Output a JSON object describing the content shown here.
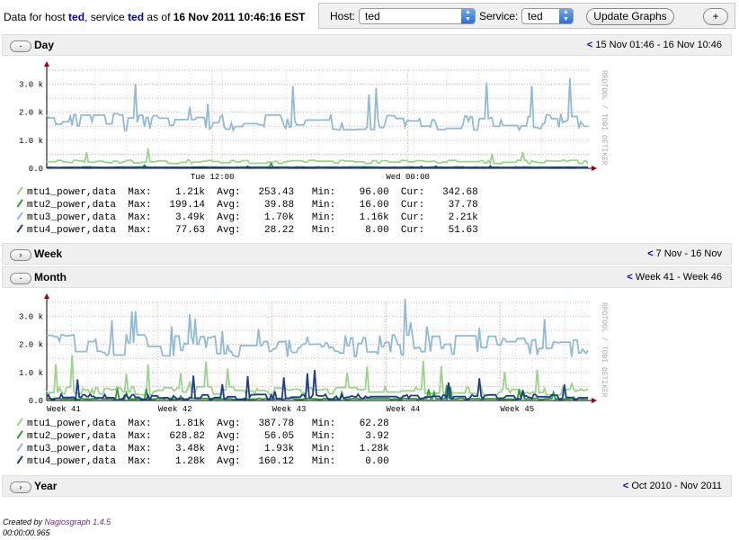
{
  "header": {
    "prefix": "Data for host ",
    "host": "ted",
    "mid1": ", service ",
    "service": "ted",
    "mid2": " as of ",
    "timestamp": "16 Nov 2011 10:46:16 EST"
  },
  "controls": {
    "host_label": "Host:",
    "host_value": "ted",
    "service_label": "Service:",
    "service_value": "ted",
    "update_button": "Update Graphs",
    "plus_button": "+"
  },
  "sections": {
    "day": {
      "toggle": "-",
      "title": "Day",
      "range": "15 Nov 01:46 - 16 Nov 10:46"
    },
    "week": {
      "toggle": "›",
      "title": "Week",
      "range": "7 Nov - 16 Nov"
    },
    "month": {
      "toggle": "-",
      "title": "Month",
      "range": "Week 41 - Week 46"
    },
    "year": {
      "toggle": "›",
      "title": "Year",
      "range": "Oct 2010 - Nov 2011"
    },
    "range_prefix": "<"
  },
  "watermark": "RRDTOOL / TOBI OETIKER",
  "colors": {
    "mtu1": "#9ad48a",
    "mtu2": "#2ca02c",
    "mtu3": "#8fbbd9",
    "mtu4": "#1f3c8f",
    "link": "#0000cc"
  },
  "day_chart": {
    "y_ticks": [
      "3.0 k",
      "2.0 k",
      "1.0 k",
      "0.0"
    ],
    "x_ticks": [
      "Tue 12:00",
      "Wed 00:00"
    ],
    "legend": [
      {
        "name": "mtu1_power,data",
        "max_label": "Max:",
        "max": "1.21k",
        "avg_label": "Avg:",
        "avg": "253.43",
        "min_label": "Min:",
        "min": "96.00",
        "cur_label": "Cur:",
        "cur": "342.68"
      },
      {
        "name": "mtu2_power,data",
        "max_label": "Max:",
        "max": "199.14",
        "avg_label": "Avg:",
        "avg": "39.88",
        "min_label": "Min:",
        "min": "16.00",
        "cur_label": "Cur:",
        "cur": "37.78"
      },
      {
        "name": "mtu3_power,data",
        "max_label": "Max:",
        "max": "3.49k",
        "avg_label": "Avg:",
        "avg": "1.70k",
        "min_label": "Min:",
        "min": "1.16k",
        "cur_label": "Cur:",
        "cur": "2.21k"
      },
      {
        "name": "mtu4_power,data",
        "max_label": "Max:",
        "max": "77.63",
        "avg_label": "Avg:",
        "avg": "28.22",
        "min_label": "Min:",
        "min": "8.00",
        "cur_label": "Cur:",
        "cur": "51.63"
      }
    ]
  },
  "month_chart": {
    "y_ticks": [
      "3.0 k",
      "2.0 k",
      "1.0 k",
      "0.0"
    ],
    "x_ticks": [
      "Week 41",
      "Week 42",
      "Week 43",
      "Week 44",
      "Week 45"
    ],
    "legend": [
      {
        "name": "mtu1_power,data",
        "max_label": "Max:",
        "max": "1.81k",
        "avg_label": "Avg:",
        "avg": "387.78",
        "min_label": "Min:",
        "min": "62.28"
      },
      {
        "name": "mtu2_power,data",
        "max_label": "Max:",
        "max": "628.82",
        "avg_label": "Avg:",
        "avg": "56.05",
        "min_label": "Min:",
        "min": "3.92"
      },
      {
        "name": "mtu3_power,data",
        "max_label": "Max:",
        "max": "3.48k",
        "avg_label": "Avg:",
        "avg": "1.93k",
        "min_label": "Min:",
        "min": "1.28k"
      },
      {
        "name": "mtu4_power,data",
        "max_label": "Max:",
        "max": "1.28k",
        "avg_label": "Avg:",
        "avg": "160.12",
        "min_label": "Min:",
        "min": "0.00"
      }
    ]
  },
  "footer": {
    "created_by": "Created by ",
    "tool": "Nagiosgraph 1.4.5",
    "elapsed": "00:00:00.965"
  }
}
